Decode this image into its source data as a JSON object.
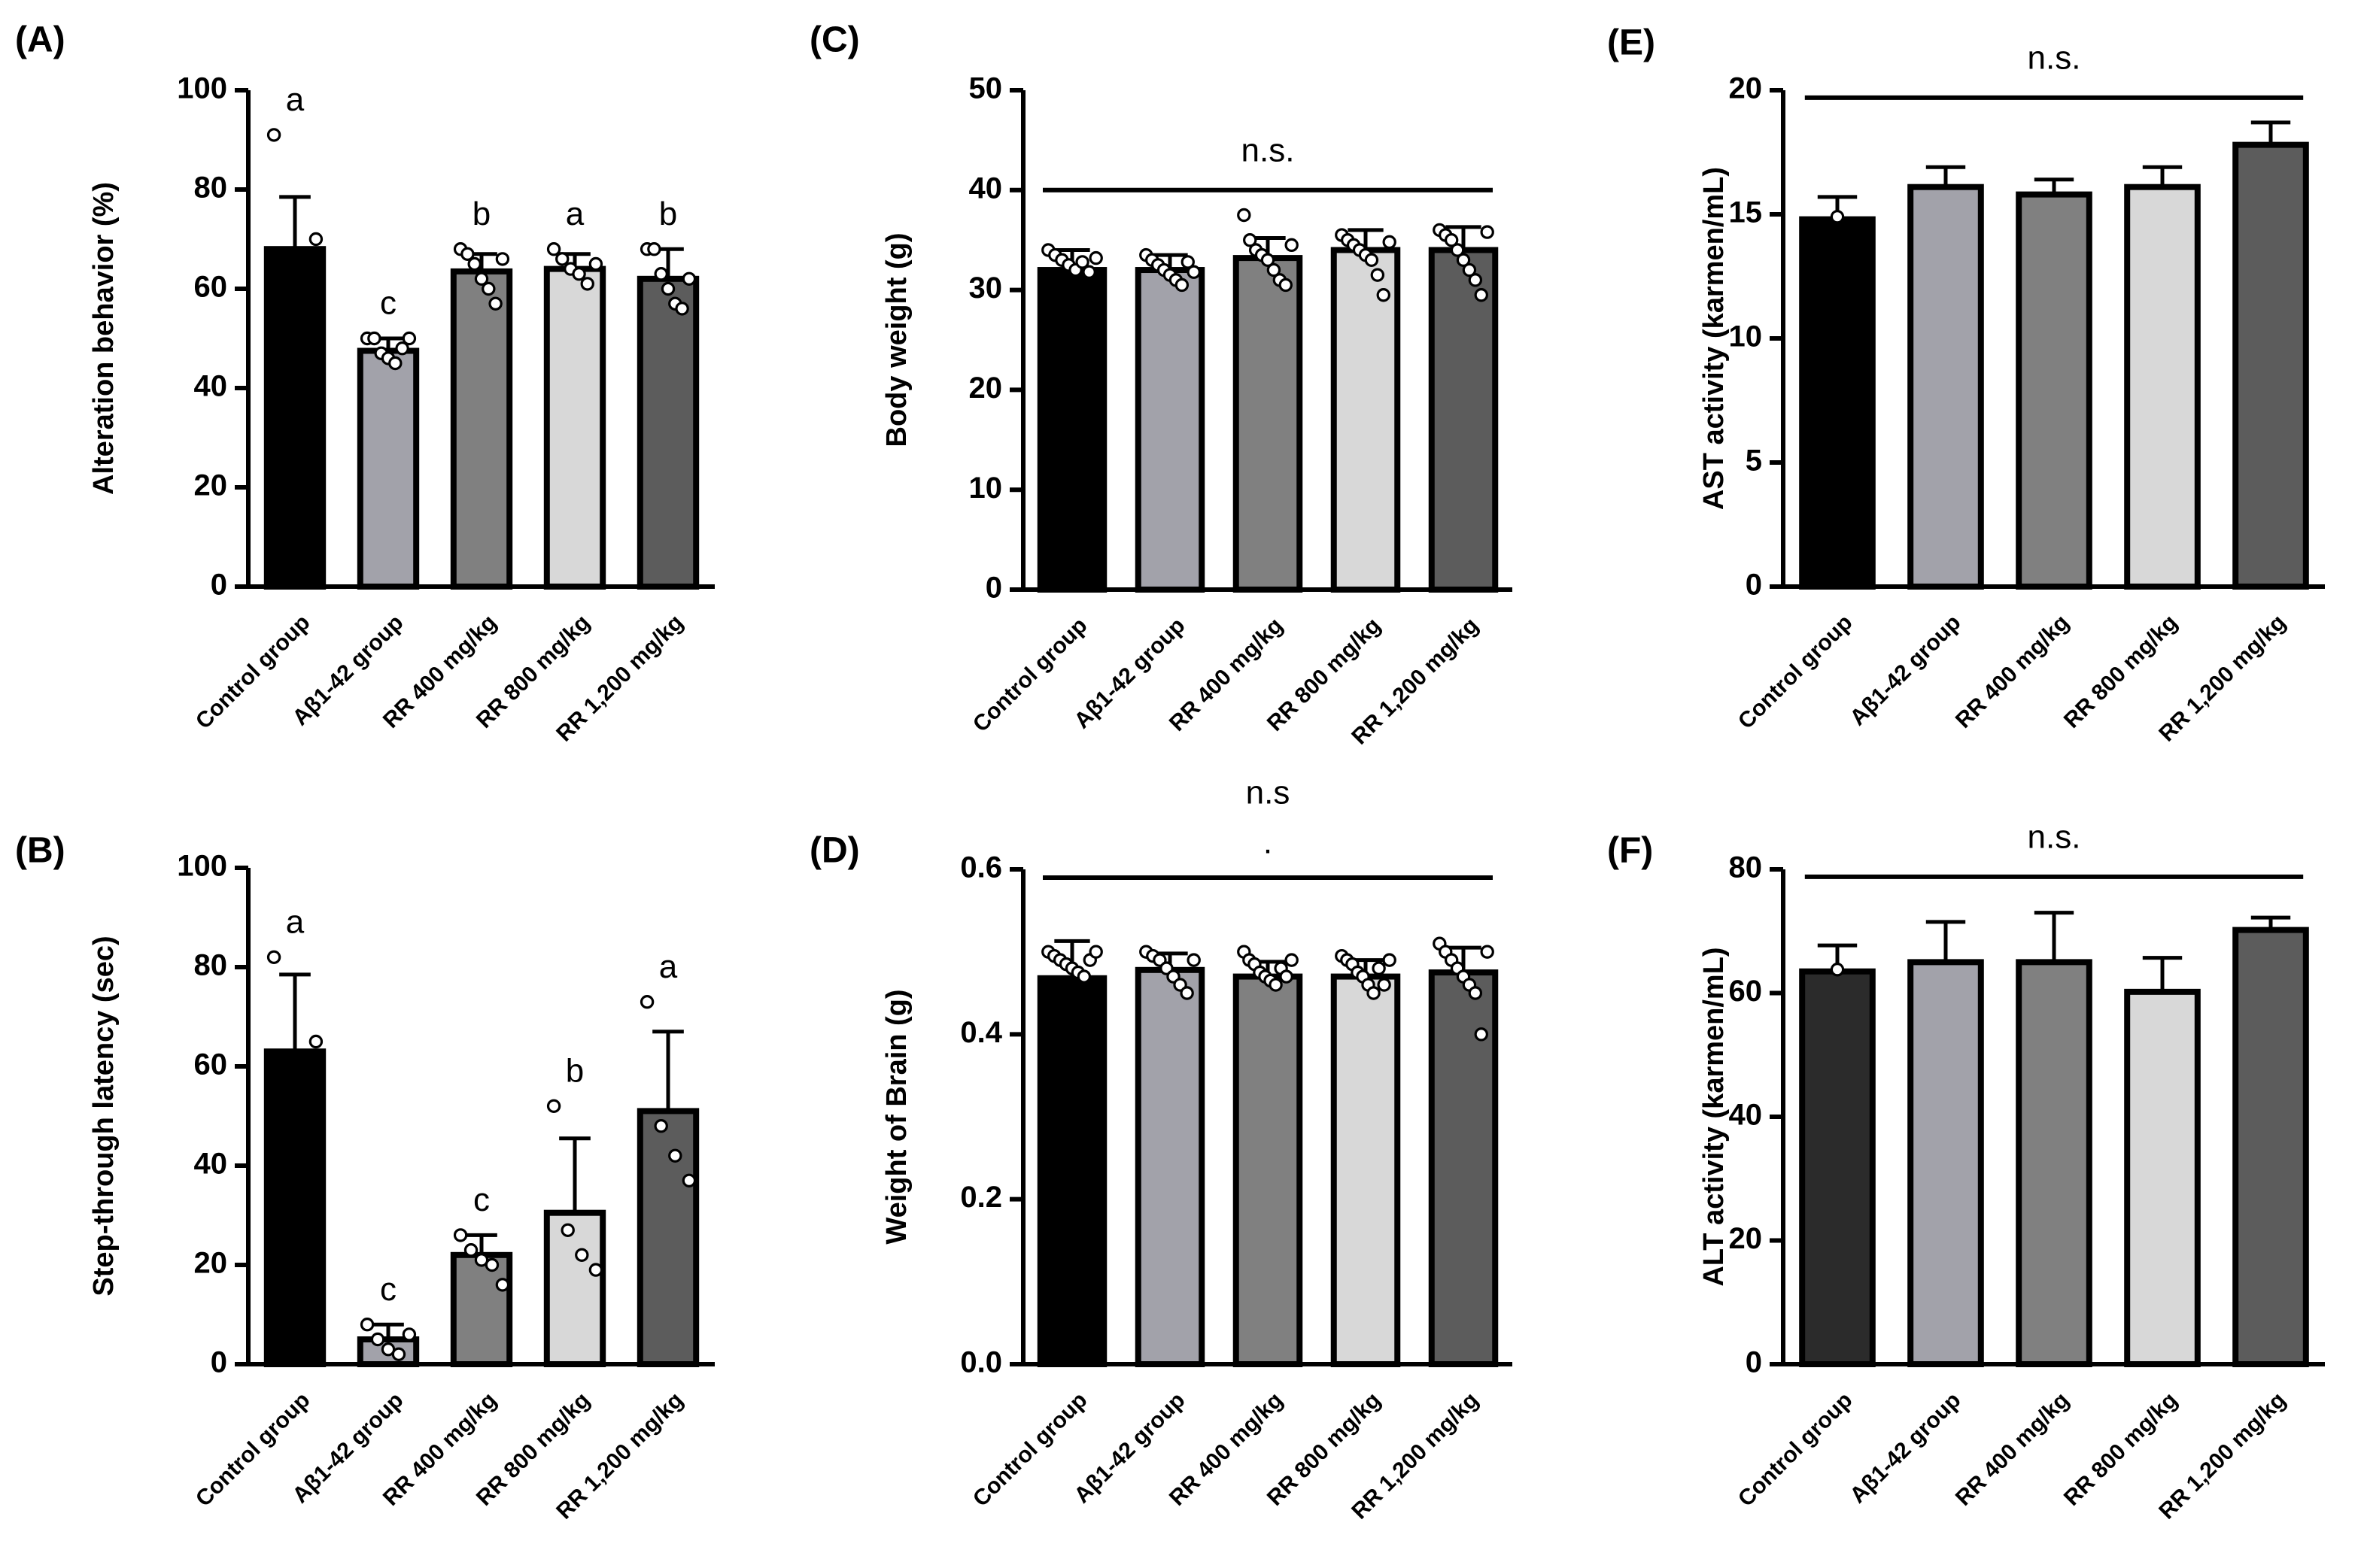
{
  "chart_data": [
    {
      "type": "bar",
      "panel": "(A)",
      "ylabel": "Alteration behavior (%)",
      "categories": [
        "Control group",
        "Aβ1-42 group",
        "RR 400 mg/kg",
        "RR 800 mg/kg",
        "RR 1,200 mg/kg"
      ],
      "colors": [
        "#000000",
        "#a2a2aa",
        "#808080",
        "#d8d8d8",
        "#5c5c5c"
      ],
      "values": [
        68,
        47.5,
        63.5,
        64,
        62
      ],
      "errors": [
        10.5,
        2.5,
        3.5,
        3,
        6
      ],
      "points": [
        [
          91,
          70
        ],
        [
          50,
          50,
          47,
          46,
          45,
          48,
          50
        ],
        [
          68,
          67,
          65,
          62,
          60,
          57,
          66
        ],
        [
          68,
          66,
          64,
          63,
          61,
          65
        ],
        [
          68,
          68,
          63,
          60,
          57,
          56,
          62
        ]
      ],
      "letters": [
        "a",
        "c",
        "b",
        "a",
        "b"
      ],
      "ylim": [
        0,
        100
      ],
      "yticks": [
        0,
        20,
        40,
        60,
        80,
        100
      ]
    },
    {
      "type": "bar",
      "panel": "(B)",
      "ylabel": "Step-through latency (sec)",
      "categories": [
        "Control group",
        "Aβ1-42 group",
        "RR 400 mg/kg",
        "RR 800 mg/kg",
        "RR 1,200 mg/kg"
      ],
      "colors": [
        "#000000",
        "#a2a2aa",
        "#808080",
        "#d8d8d8",
        "#5c5c5c"
      ],
      "values": [
        63,
        5,
        22,
        30.5,
        51
      ],
      "errors": [
        15.5,
        3,
        4,
        15,
        16
      ],
      "points": [
        [
          82,
          65
        ],
        [
          8,
          5,
          3,
          2,
          6
        ],
        [
          26,
          23,
          21,
          20,
          16
        ],
        [
          52,
          27,
          22,
          19
        ],
        [
          73,
          48,
          42,
          37
        ]
      ],
      "letters": [
        "a",
        "c",
        "c",
        "b",
        "a"
      ],
      "ylim": [
        0,
        100
      ],
      "yticks": [
        0,
        20,
        40,
        60,
        80,
        100
      ]
    },
    {
      "type": "bar",
      "panel": "(C)",
      "ylabel": "Body weight (g)",
      "categories": [
        "Control group",
        "Aβ1-42 group",
        "RR 400 mg/kg",
        "RR 800 mg/kg",
        "RR 1,200 mg/kg"
      ],
      "colors": [
        "#000000",
        "#a2a2aa",
        "#808080",
        "#d8d8d8",
        "#5c5c5c"
      ],
      "values": [
        32,
        32,
        33.2,
        34,
        34
      ],
      "errors": [
        2,
        1.5,
        2,
        2,
        2.3
      ],
      "points": [
        [
          34,
          33.5,
          33,
          32.5,
          32,
          32.8,
          31.8,
          33.2
        ],
        [
          33.5,
          33,
          32.5,
          32,
          31.5,
          31,
          30.5,
          32.8,
          31.8
        ],
        [
          37.5,
          35,
          34,
          33.5,
          33,
          32,
          31,
          30.5,
          34.5
        ],
        [
          35.5,
          35,
          34.5,
          34,
          33.5,
          33,
          31.5,
          29.5,
          34.8
        ],
        [
          36,
          35.5,
          35,
          34,
          33,
          32,
          31,
          29.5,
          35.8
        ]
      ],
      "ns_label": "n.s.",
      "ns_line": 40,
      "ylim": [
        0,
        50
      ],
      "yticks": [
        0,
        10,
        20,
        30,
        40,
        50
      ]
    },
    {
      "type": "bar",
      "panel": "(D)",
      "ylabel": "Weight of Brain (g)",
      "categories": [
        "Control group",
        "Aβ1-42 group",
        "RR 400 mg/kg",
        "RR 800 mg/kg",
        "RR 1,200 mg/kg"
      ],
      "colors": [
        "#000000",
        "#a2a2aa",
        "#808080",
        "#d8d8d8",
        "#5c5c5c"
      ],
      "values": [
        0.468,
        0.478,
        0.47,
        0.47,
        0.475
      ],
      "errors": [
        0.045,
        0.02,
        0.018,
        0.02,
        0.03
      ],
      "points": [
        [
          0.5,
          0.495,
          0.49,
          0.485,
          0.48,
          0.475,
          0.47,
          0.49,
          0.5
        ],
        [
          0.5,
          0.495,
          0.49,
          0.48,
          0.47,
          0.46,
          0.45,
          0.49
        ],
        [
          0.5,
          0.49,
          0.485,
          0.475,
          0.47,
          0.465,
          0.46,
          0.48,
          0.47,
          0.49
        ],
        [
          0.495,
          0.49,
          0.485,
          0.475,
          0.47,
          0.46,
          0.45,
          0.48,
          0.46,
          0.49
        ],
        [
          0.51,
          0.5,
          0.49,
          0.48,
          0.47,
          0.46,
          0.45,
          0.4,
          0.5
        ]
      ],
      "ns_label": "n.s",
      "ns_note": ".",
      "ns_line": 0.59,
      "ylim": [
        0,
        0.6
      ],
      "yticks": [
        {
          "value": 0,
          "label": "0.0"
        },
        {
          "value": 0.2,
          "label": "0.2"
        },
        {
          "value": 0.4,
          "label": "0.4"
        },
        {
          "value": 0.6,
          "label": "0.6"
        }
      ]
    },
    {
      "type": "bar",
      "panel": "(E)",
      "ylabel": "AST activity (karmen/mL)",
      "categories": [
        "Control group",
        "Aβ1-42 group",
        "RR 400 mg/kg",
        "RR 800 mg/kg",
        "RR 1,200 mg/kg"
      ],
      "colors": [
        "#000000",
        "#a2a2aa",
        "#808080",
        "#d8d8d8",
        "#5c5c5c"
      ],
      "values": [
        14.8,
        16.1,
        15.8,
        16.1,
        17.8
      ],
      "errors": [
        0.9,
        0.8,
        0.6,
        0.8,
        0.9
      ],
      "points": [
        [
          14.9
        ],
        [],
        [],
        [],
        []
      ],
      "ns_label": "n.s.",
      "ns_line": 19.7,
      "ylim": [
        0,
        20
      ],
      "yticks": [
        0,
        5,
        10,
        15,
        20
      ]
    },
    {
      "type": "bar",
      "panel": "(F)",
      "ylabel": "ALT activity (karmen/mL)",
      "categories": [
        "Control group",
        "Aβ1-42 group",
        "RR 400 mg/kg",
        "RR 800 mg/kg",
        "RR 1,200 mg/kg"
      ],
      "colors": [
        "#2b2b2b",
        "#a2a2aa",
        "#808080",
        "#d8d8d8",
        "#5c5c5c"
      ],
      "values": [
        63.5,
        65,
        65,
        60.2,
        70.2
      ],
      "errors": [
        4.2,
        6.5,
        8,
        5.5,
        2
      ],
      "points": [
        [
          63.8
        ],
        [],
        [],
        [],
        []
      ],
      "ns_label": "n.s.",
      "ns_line": 78.8,
      "ylim": [
        0,
        80
      ],
      "yticks": [
        0,
        20,
        40,
        60,
        80
      ]
    }
  ]
}
